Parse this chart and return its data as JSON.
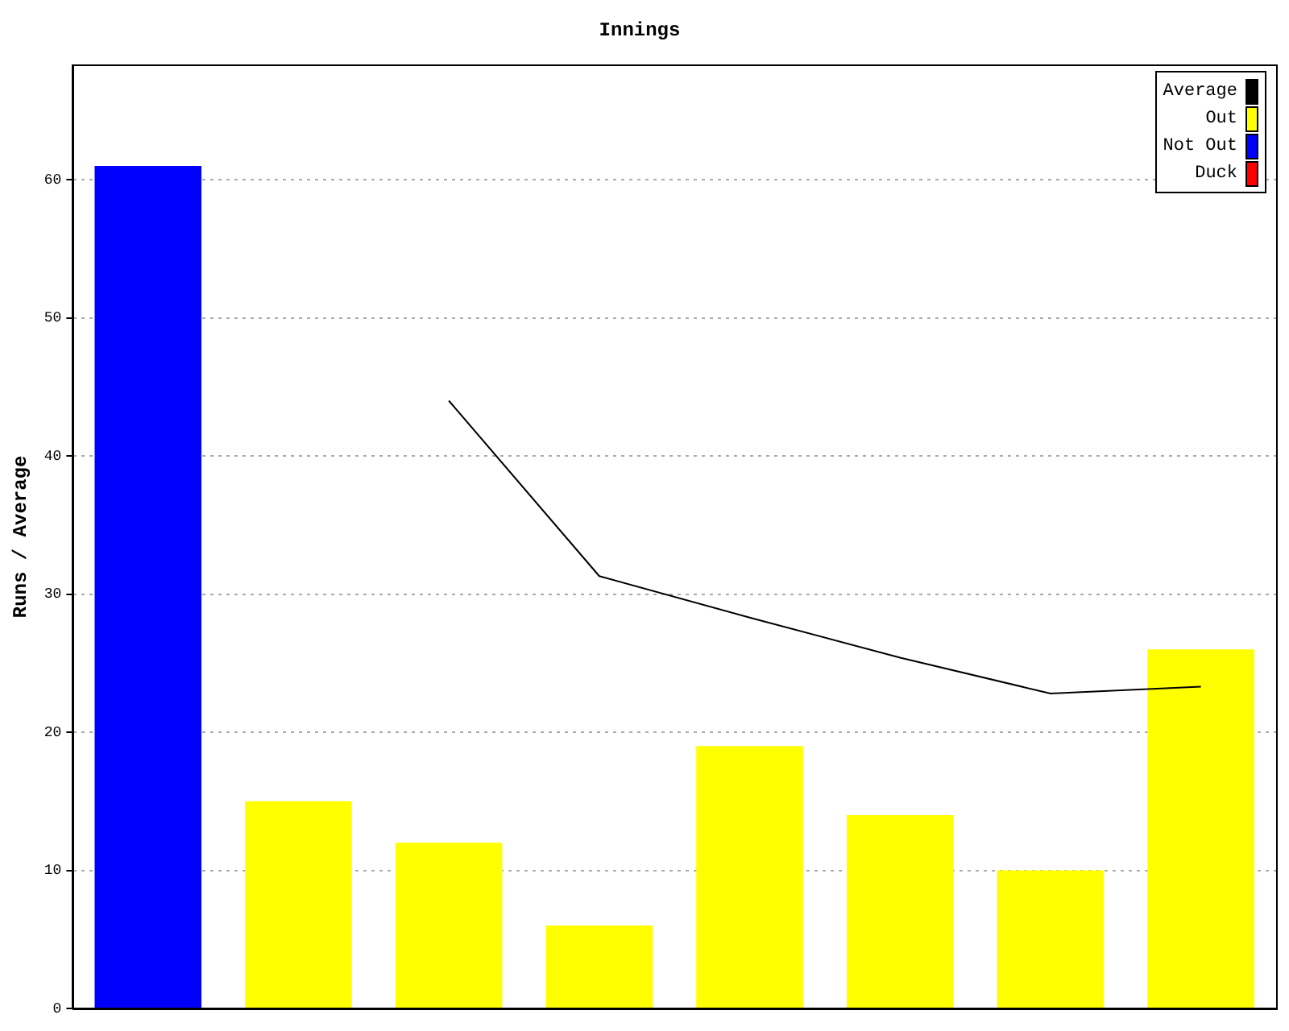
{
  "chart_data": {
    "type": "bar",
    "title": "Innings",
    "ylabel": "Runs / Average",
    "categories": [
      null,
      null,
      null,
      null,
      null,
      null,
      null,
      null
    ],
    "series": [
      {
        "name": "Average",
        "type": "line",
        "color": "#000000",
        "values": [
          null,
          null,
          44,
          31.3,
          28.3,
          25.4,
          22.8,
          23.3
        ]
      },
      {
        "name": "Out",
        "color": "#ffff00",
        "values": [
          null,
          15,
          12,
          6,
          19,
          14,
          10,
          26
        ]
      },
      {
        "name": "Not Out",
        "color": "#0000ff",
        "values": [
          61,
          null,
          null,
          null,
          null,
          null,
          null,
          null
        ]
      },
      {
        "name": "Duck",
        "color": "#ff0000",
        "values": [
          null,
          null,
          null,
          null,
          null,
          null,
          null,
          null
        ]
      }
    ],
    "ylim": [
      0,
      68.3
    ],
    "yticks": [
      0,
      10,
      20,
      30,
      40,
      50,
      60
    ],
    "grid": "y",
    "legend": "top right",
    "tick_labels": "y",
    "marker": "none"
  }
}
